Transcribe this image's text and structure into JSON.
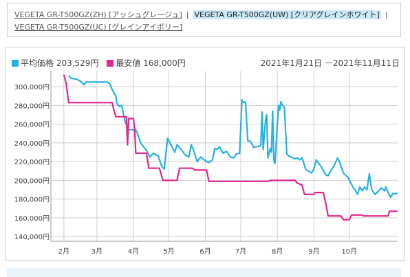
{
  "variants": [
    {
      "label": "VEGETA GR-T500GZ(ZH) [アッシュグレージュ]",
      "active": false
    },
    {
      "label": "VEGETA GR-T500GZ(UW) [クリアグレインホワイト]",
      "active": true
    },
    {
      "label": "VEGETA GR-T500GZ(UC) [グレインアイボリー]",
      "active": false
    }
  ],
  "separator": "|",
  "colors": {
    "avg": "#22b2e3",
    "min": "#e0258f",
    "grid": "#cfcfcf"
  },
  "chart_data": {
    "type": "line",
    "legend": [
      {
        "label": "平均価格 203,529円",
        "color": "#22b2e3"
      },
      {
        "label": "最安値 168,000円",
        "color": "#e0258f"
      }
    ],
    "date_range": "2021年1月21日 －2021年11月11日",
    "x_ticks": [
      "2月",
      "3月",
      "4月",
      "5月",
      "6月",
      "7月",
      "8月",
      "9月",
      "10月"
    ],
    "y_ticks": [
      "140,000円",
      "160,000円",
      "180,000円",
      "200,000円",
      "220,000円",
      "240,000円",
      "260,000円",
      "280,000円",
      "300,000円"
    ],
    "xlim": [
      "2021-01-21",
      "2021-11-11"
    ],
    "ylim": [
      135000,
      317000
    ],
    "grid": true,
    "series": [
      {
        "name": "平均価格",
        "color": "#22b2e3",
        "points": [
          [
            "2021-02-05",
            312000
          ],
          [
            "2021-02-07",
            309000
          ],
          [
            "2021-02-12",
            308000
          ],
          [
            "2021-02-15",
            306000
          ],
          [
            "2021-02-18",
            302000
          ],
          [
            "2021-02-20",
            305000
          ],
          [
            "2021-03-10",
            305000
          ],
          [
            "2021-03-12",
            303000
          ],
          [
            "2021-03-14",
            297000
          ],
          [
            "2021-03-17",
            290000
          ],
          [
            "2021-03-18",
            282000
          ],
          [
            "2021-03-20",
            279000
          ],
          [
            "2021-03-22",
            280000
          ],
          [
            "2021-03-25",
            262000
          ],
          [
            "2021-03-28",
            254000
          ],
          [
            "2021-04-03",
            254000
          ],
          [
            "2021-04-05",
            248000
          ],
          [
            "2021-04-07",
            240000
          ],
          [
            "2021-04-12",
            232000
          ],
          [
            "2021-04-15",
            225000
          ],
          [
            "2021-04-18",
            229000
          ],
          [
            "2021-04-22",
            226000
          ],
          [
            "2021-04-25",
            215000
          ],
          [
            "2021-04-27",
            212000
          ],
          [
            "2021-04-30",
            245000
          ],
          [
            "2021-05-02",
            240000
          ],
          [
            "2021-05-06",
            230000
          ],
          [
            "2021-05-08",
            238000
          ],
          [
            "2021-05-12",
            232000
          ],
          [
            "2021-05-15",
            227000
          ],
          [
            "2021-05-18",
            225000
          ],
          [
            "2021-05-20",
            238000
          ],
          [
            "2021-05-22",
            232000
          ],
          [
            "2021-05-25",
            220000
          ],
          [
            "2021-05-28",
            225000
          ],
          [
            "2021-06-02",
            220000
          ],
          [
            "2021-06-04",
            219000
          ],
          [
            "2021-06-07",
            222000
          ],
          [
            "2021-06-09",
            234000
          ],
          [
            "2021-06-11",
            233000
          ],
          [
            "2021-06-13",
            236000
          ],
          [
            "2021-06-16",
            229000
          ],
          [
            "2021-06-19",
            231000
          ],
          [
            "2021-06-22",
            225000
          ],
          [
            "2021-06-25",
            224000
          ],
          [
            "2021-06-27",
            228000
          ],
          [
            "2021-06-30",
            229000
          ],
          [
            "2021-07-02",
            286000
          ],
          [
            "2021-07-03",
            283000
          ],
          [
            "2021-07-05",
            284000
          ],
          [
            "2021-07-07",
            242000
          ],
          [
            "2021-07-09",
            242000
          ],
          [
            "2021-07-12",
            235000
          ],
          [
            "2021-07-14",
            236000
          ],
          [
            "2021-07-18",
            237000
          ],
          [
            "2021-07-19",
            273000
          ],
          [
            "2021-07-20",
            233000
          ],
          [
            "2021-07-22",
            265000
          ],
          [
            "2021-07-23",
            270000
          ],
          [
            "2021-07-24",
            224000
          ],
          [
            "2021-07-26",
            234000
          ],
          [
            "2021-07-27",
            230000
          ],
          [
            "2021-07-28",
            274000
          ],
          [
            "2021-07-29",
            222000
          ],
          [
            "2021-07-30",
            218000
          ],
          [
            "2021-08-02",
            280000
          ],
          [
            "2021-08-03",
            275000
          ],
          [
            "2021-08-04",
            284000
          ],
          [
            "2021-08-05",
            281000
          ],
          [
            "2021-08-07",
            278000
          ],
          [
            "2021-08-09",
            228000
          ],
          [
            "2021-08-11",
            226000
          ],
          [
            "2021-08-14",
            224000
          ],
          [
            "2021-08-16",
            223000
          ],
          [
            "2021-08-18",
            224000
          ],
          [
            "2021-08-20",
            222000
          ],
          [
            "2021-08-22",
            224000
          ],
          [
            "2021-08-25",
            212000
          ],
          [
            "2021-08-27",
            210000
          ],
          [
            "2021-08-30",
            208000
          ],
          [
            "2021-09-01",
            212000
          ],
          [
            "2021-09-03",
            222000
          ],
          [
            "2021-09-07",
            215000
          ],
          [
            "2021-09-11",
            206000
          ],
          [
            "2021-09-13",
            205000
          ],
          [
            "2021-09-16",
            212000
          ],
          [
            "2021-09-18",
            215000
          ],
          [
            "2021-09-21",
            224000
          ],
          [
            "2021-09-23",
            219000
          ],
          [
            "2021-09-26",
            208000
          ],
          [
            "2021-09-30",
            203000
          ],
          [
            "2021-10-04",
            193000
          ],
          [
            "2021-10-06",
            190000
          ],
          [
            "2021-10-08",
            185000
          ],
          [
            "2021-10-10",
            193000
          ],
          [
            "2021-10-12",
            189000
          ],
          [
            "2021-10-14",
            193000
          ],
          [
            "2021-10-16",
            190000
          ],
          [
            "2021-10-18",
            207000
          ],
          [
            "2021-10-20",
            190000
          ],
          [
            "2021-10-23",
            185000
          ],
          [
            "2021-10-26",
            189000
          ],
          [
            "2021-10-28",
            192000
          ],
          [
            "2021-10-31",
            189000
          ],
          [
            "2021-11-01",
            193000
          ],
          [
            "2021-11-03",
            187000
          ],
          [
            "2021-11-05",
            182000
          ],
          [
            "2021-11-07",
            186000
          ],
          [
            "2021-11-11",
            186000
          ]
        ]
      },
      {
        "name": "最安値",
        "color": "#e0258f",
        "points": [
          [
            "2021-02-01",
            313000
          ],
          [
            "2021-02-03",
            303000
          ],
          [
            "2021-02-05",
            283000
          ],
          [
            "2021-03-14",
            283000
          ],
          [
            "2021-03-15",
            277000
          ],
          [
            "2021-03-17",
            268000
          ],
          [
            "2021-03-26",
            268000
          ],
          [
            "2021-03-27",
            238000
          ],
          [
            "2021-03-28",
            266000
          ],
          [
            "2021-04-01",
            266000
          ],
          [
            "2021-04-02",
            255000
          ],
          [
            "2021-04-03",
            229000
          ],
          [
            "2021-04-12",
            229000
          ],
          [
            "2021-04-14",
            213000
          ],
          [
            "2021-04-23",
            213000
          ],
          [
            "2021-04-26",
            200000
          ],
          [
            "2021-05-08",
            200000
          ],
          [
            "2021-05-10",
            213000
          ],
          [
            "2021-05-21",
            213000
          ],
          [
            "2021-05-23",
            211000
          ],
          [
            "2021-06-02",
            211000
          ],
          [
            "2021-06-04",
            199000
          ],
          [
            "2021-07-24",
            199000
          ],
          [
            "2021-07-26",
            200000
          ],
          [
            "2021-08-16",
            200000
          ],
          [
            "2021-08-18",
            197000
          ],
          [
            "2021-08-22",
            195000
          ],
          [
            "2021-08-24",
            185000
          ],
          [
            "2021-09-01",
            185000
          ],
          [
            "2021-09-02",
            187000
          ],
          [
            "2021-09-09",
            187000
          ],
          [
            "2021-09-11",
            176000
          ],
          [
            "2021-09-13",
            162000
          ],
          [
            "2021-09-24",
            162000
          ],
          [
            "2021-09-26",
            158000
          ],
          [
            "2021-10-01",
            158000
          ],
          [
            "2021-10-03",
            163000
          ],
          [
            "2021-10-12",
            163000
          ],
          [
            "2021-10-13",
            162000
          ],
          [
            "2021-11-03",
            162000
          ],
          [
            "2021-11-04",
            167000
          ],
          [
            "2021-11-11",
            167000
          ]
        ]
      }
    ]
  }
}
